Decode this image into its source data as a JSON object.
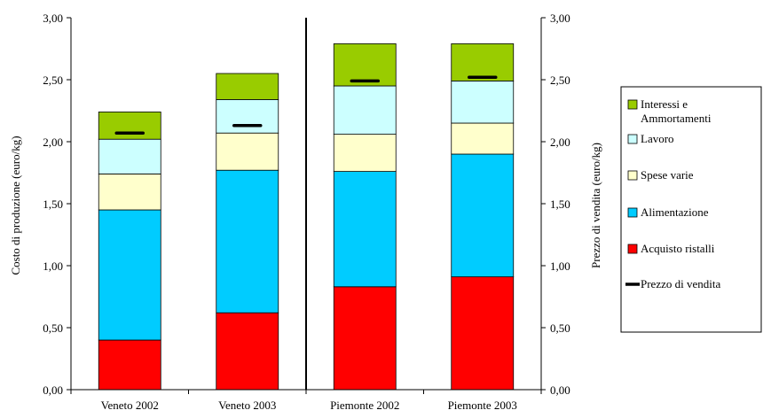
{
  "chart_data": {
    "type": "bar",
    "stacked": true,
    "categories": [
      "Veneto 2002",
      "Veneto 2003",
      "Piemonte 2002",
      "Piemonte 2003"
    ],
    "ylabel_left": "Costo di produzione (euro/kg)",
    "ylabel_right": "Prezzo di vendita (euro/kg)",
    "ylim": [
      0,
      3
    ],
    "yticks": [
      "0,00",
      "0,50",
      "1,00",
      "1,50",
      "2,00",
      "2,50",
      "3,00"
    ],
    "series": [
      {
        "name": "Acquisto ristalli",
        "color": "#ff0000",
        "values": [
          0.4,
          0.62,
          0.83,
          0.91
        ]
      },
      {
        "name": "Alimentazione",
        "color": "#00ccff",
        "values": [
          1.05,
          1.15,
          0.93,
          0.99
        ]
      },
      {
        "name": "Spese varie",
        "color": "#ffffcc",
        "values": [
          0.29,
          0.3,
          0.3,
          0.25
        ]
      },
      {
        "name": "Lavoro",
        "color": "#ccffff",
        "values": [
          0.28,
          0.27,
          0.39,
          0.34
        ]
      },
      {
        "name": "Interessi e Ammortamenti",
        "color": "#99cc00",
        "values": [
          0.22,
          0.21,
          0.34,
          0.3
        ]
      }
    ],
    "price": {
      "name": "Prezzo di vendita",
      "color": "#000000",
      "values": [
        2.07,
        2.13,
        2.49,
        2.52
      ]
    },
    "legend": [
      {
        "label": "Interessi e Ammortamenti",
        "color": "#99cc00",
        "kind": "box"
      },
      {
        "label": "Lavoro",
        "color": "#ccffff",
        "kind": "box"
      },
      {
        "label": "Spese varie",
        "color": "#ffffcc",
        "kind": "box"
      },
      {
        "label": "Alimentazione",
        "color": "#00ccff",
        "kind": "box"
      },
      {
        "label": "Acquisto ristalli",
        "color": "#ff0000",
        "kind": "box"
      },
      {
        "label": "Prezzo di vendita",
        "color": "#000000",
        "kind": "line"
      }
    ],
    "divider_after_category": 1,
    "grid": false,
    "legend_position": "right"
  }
}
